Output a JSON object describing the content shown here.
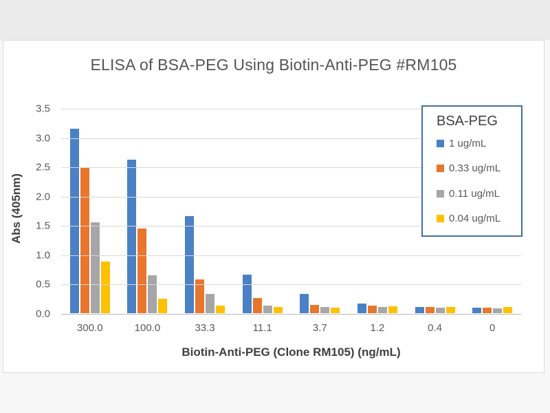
{
  "colors": {
    "top_strip": "#ebebeb",
    "panel_background": "#ffffff",
    "gridline": "#d9d9d9",
    "axis_line": "#b9b9b9",
    "legend_border": "#41719c",
    "title_text": "#545454",
    "tick_text": "#595959"
  },
  "chart_data": {
    "type": "bar",
    "title": "ELISA of BSA-PEG Using Biotin-Anti-PEG #RM105",
    "xlabel": "Biotin-Anti-PEG (Clone RM105) (ng/mL)",
    "ylabel": "Abs (405nm)",
    "ylim": [
      0,
      3.5
    ],
    "yticks": [
      "0.0",
      "0.5",
      "1.0",
      "1.5",
      "2.0",
      "2.5",
      "3.0",
      "3.5"
    ],
    "grid": true,
    "categories": [
      "300.0",
      "100.0",
      "33.3",
      "11.1",
      "3.7",
      "1.2",
      "0.4",
      "0"
    ],
    "series": [
      {
        "name": "1 ug/mL",
        "color": "#4a80c4",
        "values": [
          3.15,
          2.62,
          1.66,
          0.66,
          0.33,
          0.17,
          0.11,
          0.09
        ]
      },
      {
        "name": "0.33 ug/mL",
        "color": "#e8762c",
        "values": [
          2.48,
          1.45,
          0.58,
          0.26,
          0.14,
          0.13,
          0.1,
          0.09
        ]
      },
      {
        "name": "0.11 ug/mL",
        "color": "#a6a6a6",
        "values": [
          1.55,
          0.65,
          0.33,
          0.13,
          0.11,
          0.1,
          0.09,
          0.08
        ]
      },
      {
        "name": "0.04 ug/mL",
        "color": "#ffc000",
        "values": [
          0.88,
          0.25,
          0.13,
          0.1,
          0.09,
          0.12,
          0.1,
          0.1
        ]
      }
    ],
    "legend": {
      "title": "BSA-PEG",
      "position": "inside-right"
    }
  }
}
